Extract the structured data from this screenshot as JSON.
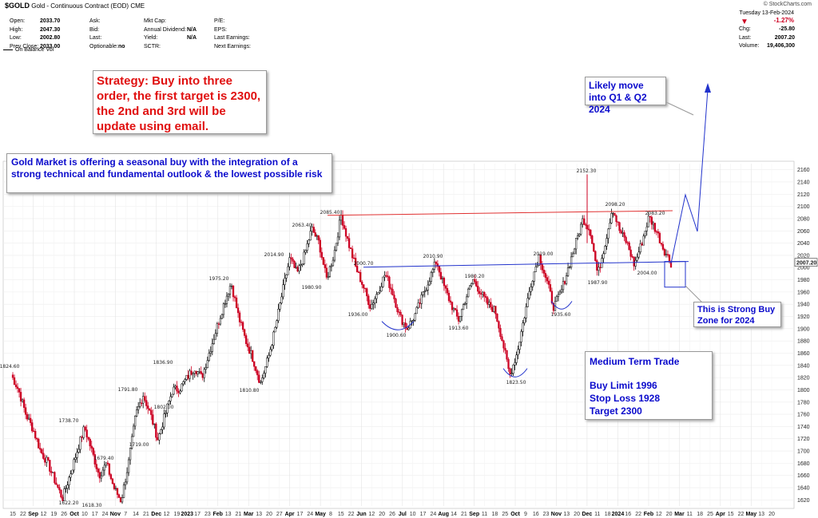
{
  "header": {
    "symbol": "$GOLD",
    "description": "Gold - Continuous Contract (EOD)",
    "exchange": "CME",
    "watermark": "© StockCharts.com",
    "col1": [
      [
        "Open:",
        "2033.70"
      ],
      [
        "High:",
        "2047.30"
      ],
      [
        "Low:",
        "2002.80"
      ],
      [
        "Prev Close:",
        "2033.00"
      ]
    ],
    "col2": [
      [
        "Ask:",
        ""
      ],
      [
        "Bid:",
        ""
      ],
      [
        "Last:",
        ""
      ],
      [
        "Optionable:",
        "no"
      ]
    ],
    "col3": [
      [
        "Mkt Cap:",
        ""
      ],
      [
        "Annual Dividend:",
        "N/A"
      ],
      [
        "Yield:",
        "N/A"
      ],
      [
        "SCTR:",
        ""
      ]
    ],
    "col4": [
      [
        "P/E:",
        ""
      ],
      [
        "EPS:",
        ""
      ],
      [
        "Last Earnings:",
        ""
      ],
      [
        "Next Earnings:",
        ""
      ]
    ],
    "date": "Tuesday  13-Feb-2024",
    "change_pct": "-1.27%",
    "change_label": "Chg:",
    "change": "-25.80",
    "last_label": "Last:",
    "last": "2007.20",
    "volume_label": "Volume:",
    "volume": "19,406,300",
    "indicator": "On Balance Vol"
  },
  "annotations": {
    "strategy": "Strategy: Buy into three order, the first target is 2300, the 2nd and 3rd will be update using email.",
    "seasonal": "Gold Market is offering a seasonal buy with the integration of a strong technical and fundamental outlook & the lowest possible risk",
    "likely_move": "Likely move into Q1 & Q2 2024",
    "buy_zone": "This is Strong Buy Zone for 2024",
    "trade_title": "Medium Term Trade",
    "buy_limit": "Buy Limit 1996",
    "stop_loss": "Stop Loss 1928",
    "target": "Target 2300"
  },
  "colors": {
    "up": "#000000",
    "down": "#cc0022",
    "resistance": "#e03030",
    "support": "#2233cc",
    "annotation_red": "#e01010",
    "annotation_blue": "#0a0acc"
  },
  "chart_data": {
    "type": "candlestick",
    "title": "Gold - Continuous Contract (EOD)",
    "ylim": [
      1610,
      2170
    ],
    "yticks": [
      1620,
      1640,
      1660,
      1680,
      1700,
      1720,
      1740,
      1760,
      1780,
      1800,
      1820,
      1840,
      1860,
      1880,
      1900,
      1920,
      1940,
      1960,
      1980,
      2000,
      2020,
      2040,
      2060,
      2080,
      2100,
      2120,
      2140,
      2160
    ],
    "last_price_label": "2007.20",
    "x_ticks": [
      {
        "label": "15",
        "b": false
      },
      {
        "label": "22",
        "b": false
      },
      {
        "label": "Sep",
        "b": true
      },
      {
        "label": "12",
        "b": false
      },
      {
        "label": "19",
        "b": false
      },
      {
        "label": "26",
        "b": false
      },
      {
        "label": "Oct",
        "b": true
      },
      {
        "label": "10",
        "b": false
      },
      {
        "label": "17",
        "b": false
      },
      {
        "label": "24",
        "b": false
      },
      {
        "label": "Nov",
        "b": true
      },
      {
        "label": "7",
        "b": false
      },
      {
        "label": "14",
        "b": false
      },
      {
        "label": "21",
        "b": false
      },
      {
        "label": "Dec",
        "b": true
      },
      {
        "label": "12",
        "b": false
      },
      {
        "label": "19",
        "b": false
      },
      {
        "label": "2023",
        "b": true
      },
      {
        "label": "17",
        "b": false
      },
      {
        "label": "23",
        "b": false
      },
      {
        "label": "Feb",
        "b": true
      },
      {
        "label": "13",
        "b": false
      },
      {
        "label": "21",
        "b": false
      },
      {
        "label": "Mar",
        "b": true
      },
      {
        "label": "13",
        "b": false
      },
      {
        "label": "20",
        "b": false
      },
      {
        "label": "27",
        "b": false
      },
      {
        "label": "Apr",
        "b": true
      },
      {
        "label": "17",
        "b": false
      },
      {
        "label": "24",
        "b": false
      },
      {
        "label": "May",
        "b": true
      },
      {
        "label": "8",
        "b": false
      },
      {
        "label": "15",
        "b": false
      },
      {
        "label": "22",
        "b": false
      },
      {
        "label": "Jun",
        "b": true
      },
      {
        "label": "12",
        "b": false
      },
      {
        "label": "20",
        "b": false
      },
      {
        "label": "26",
        "b": false
      },
      {
        "label": "Jul",
        "b": true
      },
      {
        "label": "10",
        "b": false
      },
      {
        "label": "17",
        "b": false
      },
      {
        "label": "24",
        "b": false
      },
      {
        "label": "Aug",
        "b": true
      },
      {
        "label": "14",
        "b": false
      },
      {
        "label": "21",
        "b": false
      },
      {
        "label": "Sep",
        "b": true
      },
      {
        "label": "11",
        "b": false
      },
      {
        "label": "18",
        "b": false
      },
      {
        "label": "25",
        "b": false
      },
      {
        "label": "Oct",
        "b": true
      },
      {
        "label": "9",
        "b": false
      },
      {
        "label": "16",
        "b": false
      },
      {
        "label": "23",
        "b": false
      },
      {
        "label": "Nov",
        "b": true
      },
      {
        "label": "13",
        "b": false
      },
      {
        "label": "20",
        "b": false
      },
      {
        "label": "Dec",
        "b": true
      },
      {
        "label": "11",
        "b": false
      },
      {
        "label": "18",
        "b": false
      },
      {
        "label": "2024",
        "b": true
      },
      {
        "label": "16",
        "b": false
      },
      {
        "label": "22",
        "b": false
      },
      {
        "label": "Feb",
        "b": true
      },
      {
        "label": "12",
        "b": false
      },
      {
        "label": "20",
        "b": false
      },
      {
        "label": "Mar",
        "b": true
      },
      {
        "label": "11",
        "b": false
      },
      {
        "label": "18",
        "b": false
      },
      {
        "label": "25",
        "b": false
      },
      {
        "label": "Apr",
        "b": true
      },
      {
        "label": "15",
        "b": false
      },
      {
        "label": "22",
        "b": false
      },
      {
        "label": "May",
        "b": true
      },
      {
        "label": "13",
        "b": false
      },
      {
        "label": "20",
        "b": false
      }
    ],
    "price_path": [
      1824.6,
      1800,
      1760,
      1735,
      1700,
      1680,
      1650,
      1622.2,
      1660,
      1700,
      1738.7,
      1700,
      1660,
      1679.4,
      1640,
      1618.3,
      1680,
      1760,
      1791.8,
      1760,
      1719,
      1760,
      1800,
      1802,
      1820,
      1836.9,
      1820,
      1860,
      1900,
      1940,
      1975.2,
      1920,
      1880,
      1850,
      1810.8,
      1850,
      1900,
      1960,
      2014.9,
      1990,
      2020,
      2063.4,
      2040,
      1980.9,
      2020,
      2085.4,
      2040,
      2000,
      1970,
      1936,
      1960,
      1990,
      1960,
      1920,
      1900.6,
      1920,
      1950,
      1980,
      2010.9,
      1970,
      1940,
      1913.6,
      1950,
      1980.2,
      1960,
      1940,
      1930,
      1880,
      1823.5,
      1860,
      1920,
      1980,
      2019,
      1980,
      1935.6,
      1960,
      2000,
      2040,
      2080,
      2060,
      1987.9,
      2040,
      2098.2,
      2060,
      2040,
      2004,
      2040,
      2083.2,
      2060,
      2030,
      2007.2
    ],
    "price_labels": [
      {
        "text": "1824.60"
      },
      {
        "text": "1738.70"
      },
      {
        "text": "1622.20"
      },
      {
        "text": "1679.40"
      },
      {
        "text": "1618.30"
      },
      {
        "text": "1791.80"
      },
      {
        "text": "1719.00"
      },
      {
        "text": "1802.00"
      },
      {
        "text": "1836.90"
      },
      {
        "text": "1975.20"
      },
      {
        "text": "1810.80"
      },
      {
        "text": "2014.90"
      },
      {
        "text": "2063.40"
      },
      {
        "text": "1980.90"
      },
      {
        "text": "2085.40"
      },
      {
        "text": "2000.70"
      },
      {
        "text": "1936.00"
      },
      {
        "text": "1900.60"
      },
      {
        "text": "2010.90"
      },
      {
        "text": "1913.60"
      },
      {
        "text": "1980.20"
      },
      {
        "text": "1823.50"
      },
      {
        "text": "2019.00"
      },
      {
        "text": "1935.60"
      },
      {
        "text": "2152.30"
      },
      {
        "text": "1987.90"
      },
      {
        "text": "2098.20"
      },
      {
        "text": "2004.00"
      },
      {
        "text": "2083.20"
      }
    ],
    "resistance_line": [
      2085.4,
      2093
    ],
    "support_line": [
      2000.7,
      2010
    ]
  }
}
